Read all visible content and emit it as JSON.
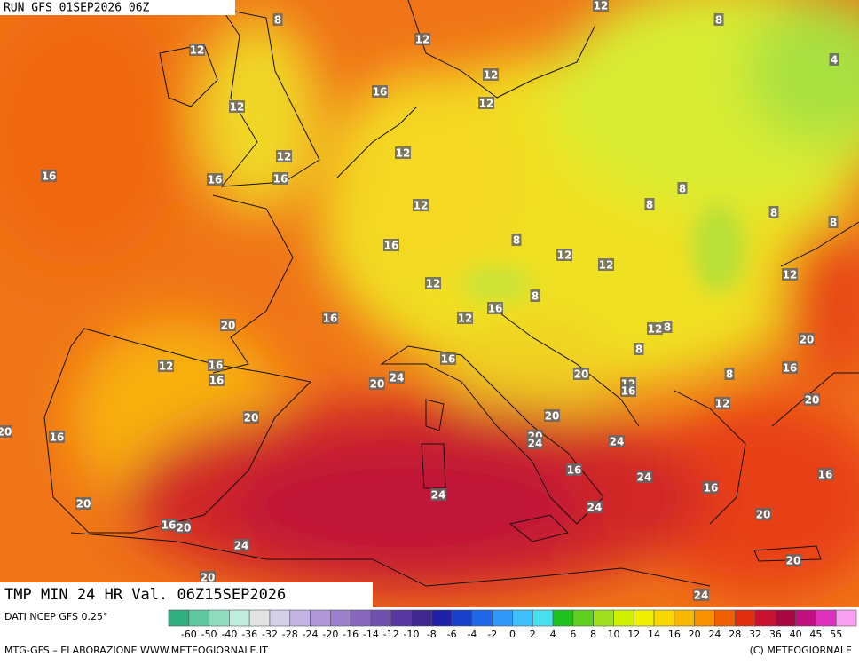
{
  "header": {
    "run": "RUN GFS 01SEP2026 06Z"
  },
  "map": {
    "labels": [
      8,
      12,
      8,
      12,
      12,
      4,
      12,
      16,
      12,
      12,
      12,
      12,
      16,
      16,
      16,
      8,
      12,
      8,
      8,
      8,
      16,
      8,
      12,
      12,
      12,
      12,
      8,
      16,
      12,
      16,
      20,
      12,
      8,
      20,
      8,
      12,
      16,
      16,
      16,
      24,
      20,
      20,
      8,
      16,
      12,
      16,
      20,
      12,
      20,
      20,
      20,
      16,
      20,
      24,
      24,
      16,
      24,
      16,
      16,
      24,
      20,
      24,
      20,
      16,
      20,
      24,
      20,
      20,
      24
    ]
  },
  "footer": {
    "validity": "TMP MIN 24 HR Val. 06Z15SEP2026",
    "source": "DATI NCEP GFS 0.25°",
    "credit": "MTG-GFS – ELABORAZIONE WWW.METEOGIORNALE.IT",
    "copyright": "(C) METEOGIORNALE"
  },
  "scale": {
    "labels": [
      -60,
      -50,
      -40,
      -36,
      -32,
      -28,
      -24,
      -20,
      -16,
      -14,
      -12,
      -10,
      -8,
      -6,
      -4,
      -2,
      0,
      2,
      4,
      6,
      8,
      10,
      12,
      14,
      16,
      20,
      24,
      28,
      32,
      36,
      40,
      45,
      55
    ],
    "colors": [
      "#30b080",
      "#60c8a0",
      "#90dcc0",
      "#c0ecdc",
      "#e4e4e4",
      "#d4d0ec",
      "#c4b4e4",
      "#b098d8",
      "#9c80cc",
      "#8868bc",
      "#7050ac",
      "#5838a0",
      "#402890",
      "#2020a8",
      "#1840c8",
      "#2068e8",
      "#3098f8",
      "#40c0f8",
      "#48e0f0",
      "#20c020",
      "#60d020",
      "#a0e020",
      "#d0f000",
      "#f0f000",
      "#f8d800",
      "#f8b800",
      "#f89000",
      "#f06000",
      "#e03010",
      "#c81030",
      "#a80840",
      "#c01080",
      "#e030c0",
      "#f8a0f0"
    ]
  }
}
